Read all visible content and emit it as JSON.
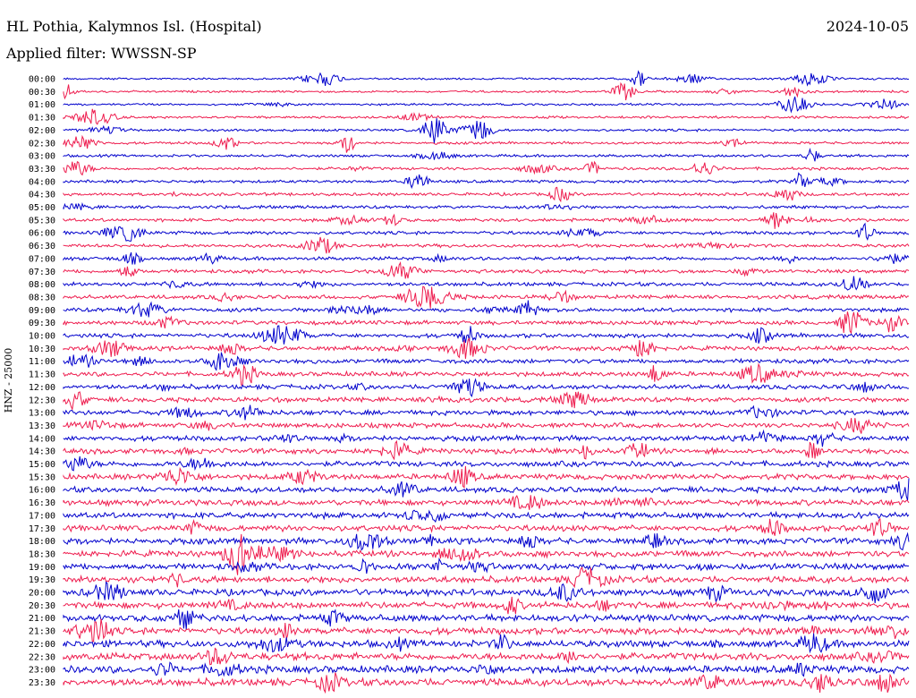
{
  "header": {
    "title": "HL Pothia, Kalymnos Isl. (Hospital)",
    "date": "2024-10-05",
    "filter": "Applied filter: WWSSN-SP"
  },
  "chart_data": {
    "type": "line",
    "ylabel": "HNZ - 25000",
    "colors": {
      "even": "#0000cc",
      "odd": "#ee1c4e"
    },
    "rows": [
      "00:00",
      "00:30",
      "01:00",
      "01:30",
      "02:00",
      "02:30",
      "03:00",
      "03:30",
      "04:00",
      "04:30",
      "05:00",
      "05:30",
      "06:00",
      "06:30",
      "07:00",
      "07:30",
      "08:00",
      "08:30",
      "09:00",
      "09:30",
      "10:00",
      "10:30",
      "11:00",
      "11:30",
      "12:00",
      "12:30",
      "13:00",
      "13:30",
      "14:00",
      "14:30",
      "15:00",
      "15:30",
      "16:00",
      "16:30",
      "17:00",
      "17:30",
      "18:00",
      "18:30",
      "19:00",
      "19:30",
      "20:00",
      "20:30",
      "21:00",
      "21:30",
      "22:00",
      "22:30",
      "23:00",
      "23:30"
    ]
  }
}
